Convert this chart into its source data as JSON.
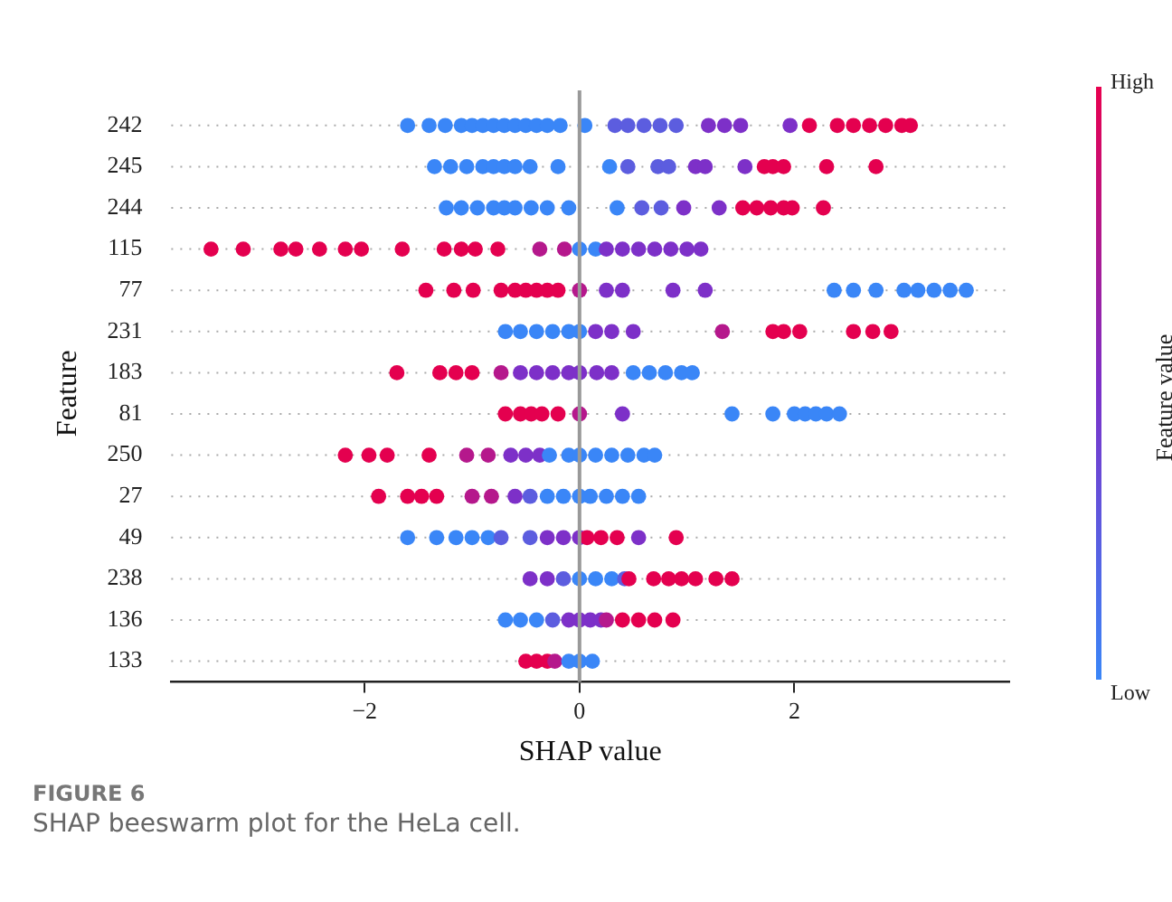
{
  "chart_data": {
    "type": "scatter",
    "orientation": "horizontal",
    "xlabel": "SHAP value",
    "ylabel": "Feature",
    "clabel": "Feature value",
    "xlim": [
      -3.8,
      4.0
    ],
    "xticks": [
      -2,
      0,
      2
    ],
    "grid": "y",
    "legend": false,
    "marker": "circle",
    "categories": [
      "242",
      "245",
      "244",
      "115",
      "77",
      "231",
      "183",
      "81",
      "250",
      "27",
      "49",
      "238",
      "136",
      "133"
    ],
    "ref_lines": [
      {
        "axis": "x",
        "value": 0,
        "color": "#999999"
      }
    ],
    "annotations": [
      "High",
      "Low",
      "FIGURE 6",
      "SHAP beeswarm plot for the HeLa cell."
    ],
    "series": [
      {
        "x": [
          "242",
          "242",
          "242",
          "242",
          "242",
          "242",
          "242",
          "242",
          "242",
          "242",
          "242",
          "242",
          "242",
          "242",
          "242",
          "242",
          "242",
          "242",
          "242",
          "242",
          "242",
          "242",
          "242",
          "242",
          "242",
          "242",
          "242",
          "242",
          "242",
          "242"
        ],
        "values": [
          -1.6,
          -1.4,
          -1.25,
          -1.1,
          -1.0,
          -0.9,
          -0.8,
          -0.7,
          -0.6,
          -0.5,
          -0.4,
          -0.3,
          -0.18,
          0.05,
          0.33,
          0.45,
          0.6,
          0.75,
          0.9,
          1.2,
          1.35,
          1.5,
          1.96,
          2.14,
          2.4,
          2.55,
          2.7,
          2.85,
          3.0,
          3.08
        ],
        "colors": [
          "#3a86f7",
          "#3a86f7",
          "#3a86f7",
          "#3a86f7",
          "#3a86f7",
          "#3a86f7",
          "#3a86f7",
          "#3a86f7",
          "#3a86f7",
          "#3a86f7",
          "#3a86f7",
          "#3a86f7",
          "#3a86f7",
          "#3a86f7",
          "#5c5ddf",
          "#5c5ddf",
          "#5c5ddf",
          "#5c5ddf",
          "#5c5ddf",
          "#7d30c8",
          "#7d30c8",
          "#7d30c8",
          "#7d30c8",
          "#e4004f",
          "#e4004f",
          "#e4004f",
          "#e4004f",
          "#e4004f",
          "#e4004f",
          "#e4004f"
        ]
      },
      {
        "x": [
          "245",
          "245",
          "245",
          "245",
          "245",
          "245",
          "245",
          "245",
          "245",
          "245",
          "245",
          "245",
          "245",
          "245",
          "245",
          "245",
          "245",
          "245",
          "245",
          "245",
          "245"
        ],
        "values": [
          -1.35,
          -1.2,
          -1.05,
          -0.9,
          -0.8,
          -0.7,
          -0.6,
          -0.46,
          -0.2,
          0.28,
          0.45,
          0.73,
          0.83,
          1.08,
          1.17,
          1.54,
          1.72,
          1.8,
          1.9,
          2.3,
          2.76
        ],
        "colors": [
          "#3a86f7",
          "#3a86f7",
          "#3a86f7",
          "#3a86f7",
          "#3a86f7",
          "#3a86f7",
          "#3a86f7",
          "#3a86f7",
          "#3a86f7",
          "#3a86f7",
          "#5c5ddf",
          "#5c5ddf",
          "#5c5ddf",
          "#7d30c8",
          "#7d30c8",
          "#7d30c8",
          "#e4004f",
          "#e4004f",
          "#e4004f",
          "#e4004f",
          "#e4004f"
        ]
      },
      {
        "x": [
          "244",
          "244",
          "244",
          "244",
          "244",
          "244",
          "244",
          "244",
          "244",
          "244",
          "244",
          "244",
          "244",
          "244",
          "244",
          "244",
          "244",
          "244",
          "244",
          "244"
        ],
        "values": [
          -1.24,
          -1.1,
          -0.95,
          -0.8,
          -0.7,
          -0.6,
          -0.45,
          -0.3,
          -0.1,
          0.35,
          0.58,
          0.76,
          0.97,
          1.3,
          1.52,
          1.65,
          1.78,
          1.9,
          1.98,
          2.27
        ],
        "colors": [
          "#3a86f7",
          "#3a86f7",
          "#3a86f7",
          "#3a86f7",
          "#3a86f7",
          "#3a86f7",
          "#3a86f7",
          "#3a86f7",
          "#3a86f7",
          "#3a86f7",
          "#5c5ddf",
          "#5c5ddf",
          "#7d30c8",
          "#7d30c8",
          "#e4004f",
          "#e4004f",
          "#e4004f",
          "#e4004f",
          "#e4004f",
          "#e4004f"
        ]
      },
      {
        "x": [
          "115",
          "115",
          "115",
          "115",
          "115",
          "115",
          "115",
          "115",
          "115",
          "115",
          "115",
          "115",
          "115",
          "115",
          "115",
          "115",
          "115",
          "115",
          "115",
          "115",
          "115",
          "115",
          "115"
        ],
        "values": [
          -3.43,
          -3.13,
          -2.78,
          -2.64,
          -2.42,
          -2.18,
          -2.03,
          -1.65,
          -1.26,
          -1.1,
          -0.97,
          -0.76,
          -0.37,
          -0.14,
          0.0,
          0.15,
          0.25,
          0.4,
          0.55,
          0.7,
          0.85,
          1.0,
          1.13
        ],
        "colors": [
          "#e4004f",
          "#e4004f",
          "#e4004f",
          "#e4004f",
          "#e4004f",
          "#e4004f",
          "#e4004f",
          "#e4004f",
          "#e4004f",
          "#e4004f",
          "#e4004f",
          "#e4004f",
          "#b5188c",
          "#b5188c",
          "#3a86f7",
          "#3a86f7",
          "#7d30c8",
          "#7d30c8",
          "#7d30c8",
          "#7d30c8",
          "#7d30c8",
          "#7d30c8",
          "#7d30c8"
        ]
      },
      {
        "x": [
          "77",
          "77",
          "77",
          "77",
          "77",
          "77",
          "77",
          "77",
          "77",
          "77",
          "77",
          "77",
          "77",
          "77",
          "77",
          "77",
          "77",
          "77",
          "77",
          "77",
          "77",
          "77"
        ],
        "values": [
          -1.43,
          -1.17,
          -0.99,
          -0.73,
          -0.6,
          -0.5,
          -0.4,
          -0.3,
          -0.2,
          0.0,
          0.25,
          0.4,
          0.87,
          1.17,
          2.37,
          2.55,
          2.76,
          3.02,
          3.15,
          3.3,
          3.45,
          3.6
        ],
        "colors": [
          "#e4004f",
          "#e4004f",
          "#e4004f",
          "#e4004f",
          "#e4004f",
          "#e4004f",
          "#e4004f",
          "#e4004f",
          "#e4004f",
          "#b5188c",
          "#7d30c8",
          "#7d30c8",
          "#7d30c8",
          "#7d30c8",
          "#3a86f7",
          "#3a86f7",
          "#3a86f7",
          "#3a86f7",
          "#3a86f7",
          "#3a86f7",
          "#3a86f7",
          "#3a86f7"
        ]
      },
      {
        "x": [
          "231",
          "231",
          "231",
          "231",
          "231",
          "231",
          "231",
          "231",
          "231",
          "231",
          "231",
          "231",
          "231",
          "231",
          "231",
          "231"
        ],
        "values": [
          -0.69,
          -0.55,
          -0.4,
          -0.25,
          -0.1,
          0.0,
          0.15,
          0.3,
          0.5,
          1.33,
          1.8,
          1.9,
          2.05,
          2.55,
          2.73,
          2.9
        ],
        "colors": [
          "#3a86f7",
          "#3a86f7",
          "#3a86f7",
          "#3a86f7",
          "#3a86f7",
          "#3a86f7",
          "#7d30c8",
          "#7d30c8",
          "#7d30c8",
          "#b5188c",
          "#e4004f",
          "#e4004f",
          "#e4004f",
          "#e4004f",
          "#e4004f",
          "#e4004f"
        ]
      },
      {
        "x": [
          "183",
          "183",
          "183",
          "183",
          "183",
          "183",
          "183",
          "183",
          "183",
          "183",
          "183",
          "183",
          "183",
          "183",
          "183",
          "183",
          "183"
        ],
        "values": [
          -1.7,
          -1.3,
          -1.15,
          -1.0,
          -0.73,
          -0.55,
          -0.4,
          -0.25,
          -0.1,
          0.0,
          0.16,
          0.3,
          0.5,
          0.65,
          0.8,
          0.95,
          1.05
        ],
        "colors": [
          "#e4004f",
          "#e4004f",
          "#e4004f",
          "#e4004f",
          "#b5188c",
          "#7d30c8",
          "#7d30c8",
          "#7d30c8",
          "#7d30c8",
          "#7d30c8",
          "#7d30c8",
          "#7d30c8",
          "#3a86f7",
          "#3a86f7",
          "#3a86f7",
          "#3a86f7",
          "#3a86f7"
        ]
      },
      {
        "x": [
          "81",
          "81",
          "81",
          "81",
          "81",
          "81",
          "81",
          "81",
          "81",
          "81",
          "81",
          "81",
          "81",
          "81"
        ],
        "values": [
          -0.69,
          -0.55,
          -0.45,
          -0.35,
          -0.2,
          0.0,
          0.4,
          1.42,
          1.8,
          2.0,
          2.1,
          2.2,
          2.3,
          2.42
        ],
        "colors": [
          "#e4004f",
          "#e4004f",
          "#e4004f",
          "#e4004f",
          "#e4004f",
          "#b5188c",
          "#7d30c8",
          "#3a86f7",
          "#3a86f7",
          "#3a86f7",
          "#3a86f7",
          "#3a86f7",
          "#3a86f7",
          "#3a86f7"
        ]
      },
      {
        "x": [
          "250",
          "250",
          "250",
          "250",
          "250",
          "250",
          "250",
          "250",
          "250",
          "250",
          "250",
          "250",
          "250",
          "250",
          "250",
          "250",
          "250"
        ],
        "values": [
          -2.18,
          -1.96,
          -1.79,
          -1.4,
          -1.05,
          -0.85,
          -0.64,
          -0.5,
          -0.37,
          -0.28,
          -0.1,
          0.0,
          0.15,
          0.3,
          0.45,
          0.6,
          0.7
        ],
        "colors": [
          "#e4004f",
          "#e4004f",
          "#e4004f",
          "#e4004f",
          "#b5188c",
          "#b5188c",
          "#7d30c8",
          "#7d30c8",
          "#7d30c8",
          "#3a86f7",
          "#3a86f7",
          "#3a86f7",
          "#3a86f7",
          "#3a86f7",
          "#3a86f7",
          "#3a86f7",
          "#3a86f7"
        ]
      },
      {
        "x": [
          "27",
          "27",
          "27",
          "27",
          "27",
          "27",
          "27",
          "27",
          "27",
          "27",
          "27",
          "27",
          "27",
          "27",
          "27"
        ],
        "values": [
          -1.87,
          -1.6,
          -1.47,
          -1.33,
          -1.0,
          -0.82,
          -0.6,
          -0.46,
          -0.3,
          -0.15,
          0.0,
          0.1,
          0.25,
          0.4,
          0.55
        ],
        "colors": [
          "#e4004f",
          "#e4004f",
          "#e4004f",
          "#e4004f",
          "#b5188c",
          "#b5188c",
          "#7d30c8",
          "#5c5ddf",
          "#3a86f7",
          "#3a86f7",
          "#3a86f7",
          "#3a86f7",
          "#3a86f7",
          "#3a86f7",
          "#3a86f7"
        ]
      },
      {
        "x": [
          "49",
          "49",
          "49",
          "49",
          "49",
          "49",
          "49",
          "49",
          "49",
          "49",
          "49",
          "49",
          "49",
          "49",
          "49"
        ],
        "values": [
          -1.6,
          -1.33,
          -1.15,
          -1.0,
          -0.85,
          -0.73,
          -0.46,
          -0.3,
          -0.15,
          0.0,
          0.07,
          0.2,
          0.35,
          0.55,
          0.9
        ],
        "colors": [
          "#3a86f7",
          "#3a86f7",
          "#3a86f7",
          "#3a86f7",
          "#3a86f7",
          "#5c5ddf",
          "#5c5ddf",
          "#7d30c8",
          "#7d30c8",
          "#7d30c8",
          "#e4004f",
          "#e4004f",
          "#e4004f",
          "#7d30c8",
          "#e4004f"
        ]
      },
      {
        "x": [
          "238",
          "238",
          "238",
          "238",
          "238",
          "238",
          "238",
          "238",
          "238",
          "238",
          "238",
          "238",
          "238",
          "238"
        ],
        "values": [
          -0.46,
          -0.3,
          -0.15,
          0.0,
          0.15,
          0.3,
          0.42,
          0.46,
          0.69,
          0.83,
          0.95,
          1.08,
          1.27,
          1.42
        ],
        "colors": [
          "#7d30c8",
          "#7d30c8",
          "#5c5ddf",
          "#3a86f7",
          "#3a86f7",
          "#3a86f7",
          "#5c5ddf",
          "#e4004f",
          "#e4004f",
          "#e4004f",
          "#e4004f",
          "#e4004f",
          "#e4004f",
          "#e4004f"
        ]
      },
      {
        "x": [
          "136",
          "136",
          "136",
          "136",
          "136",
          "136",
          "136",
          "136",
          "136",
          "136",
          "136",
          "136",
          "136"
        ],
        "values": [
          -0.69,
          -0.55,
          -0.4,
          -0.25,
          -0.1,
          0.0,
          0.1,
          0.2,
          0.25,
          0.4,
          0.55,
          0.7,
          0.87
        ],
        "colors": [
          "#3a86f7",
          "#3a86f7",
          "#3a86f7",
          "#5c5ddf",
          "#7d30c8",
          "#7d30c8",
          "#7d30c8",
          "#7d30c8",
          "#b5188c",
          "#e4004f",
          "#e4004f",
          "#e4004f",
          "#e4004f"
        ]
      },
      {
        "x": [
          "133",
          "133",
          "133",
          "133",
          "133",
          "133",
          "133"
        ],
        "values": [
          -0.5,
          -0.4,
          -0.3,
          -0.23,
          -0.1,
          0.0,
          0.12
        ],
        "colors": [
          "#e4004f",
          "#e4004f",
          "#e4004f",
          "#b5188c",
          "#3a86f7",
          "#3a86f7",
          "#3a86f7"
        ]
      }
    ]
  }
}
